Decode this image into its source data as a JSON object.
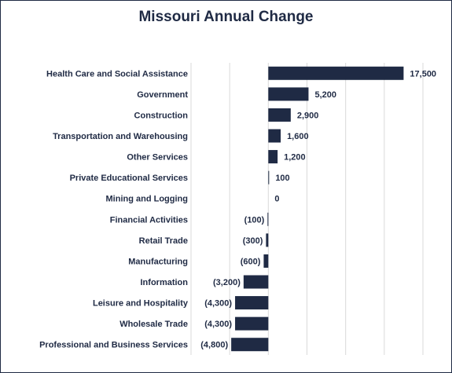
{
  "chart_data": {
    "type": "bar",
    "orientation": "horizontal",
    "title": "Missouri Annual Change",
    "categories": [
      "Health Care and Social Assistance",
      "Government",
      "Construction",
      "Transportation and Warehousing",
      "Other Services",
      "Private Educational Services",
      "Mining and Logging",
      "Financial Activities",
      "Retail Trade",
      "Manufacturing",
      "Information",
      "Leisure and Hospitality",
      "Wholesale Trade",
      "Professional and Business Services"
    ],
    "values": [
      17500,
      5200,
      2900,
      1600,
      1200,
      100,
      0,
      -100,
      -300,
      -600,
      -3200,
      -4300,
      -4300,
      -4800
    ],
    "value_labels": [
      "17,500",
      "5,200",
      "2,900",
      "1,600",
      "1,200",
      "100",
      "0",
      "(100)",
      "(300)",
      "(600)",
      "(3,200)",
      "(4,300)",
      "(4,300)",
      "(4,800)"
    ],
    "xlim": [
      -10000,
      20000
    ],
    "gridlines": [
      -10000,
      -5000,
      0,
      5000,
      10000,
      15000,
      20000
    ],
    "grid": true,
    "legend": "none",
    "bar_color": "#1f2a44",
    "grid_color": "#d9d9d9"
  }
}
